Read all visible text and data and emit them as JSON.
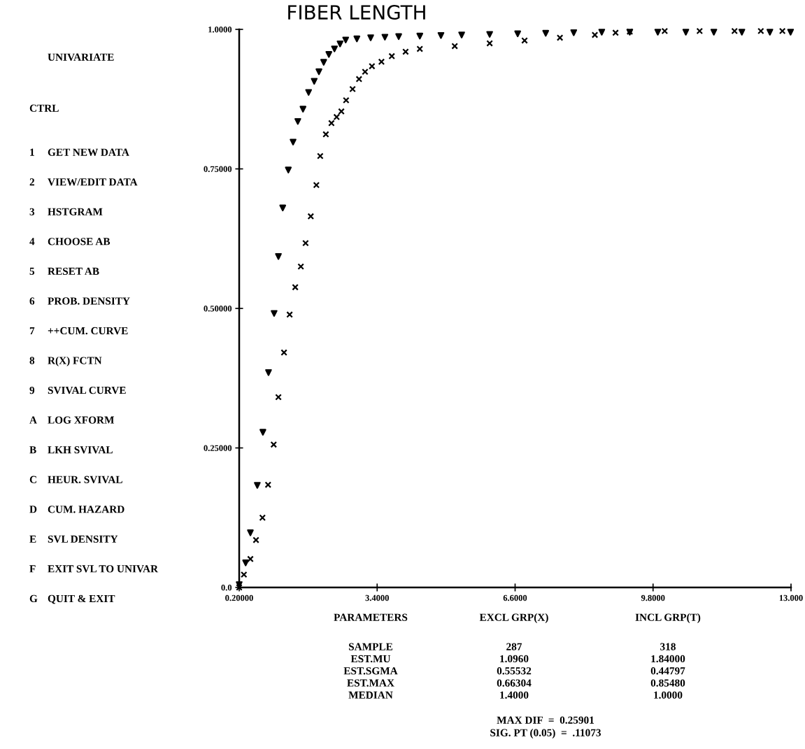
{
  "chart_data": {
    "type": "scatter",
    "title": "FIBER LENGTH",
    "xlim": [
      0.2,
      13.0
    ],
    "ylim": [
      0,
      1.0
    ],
    "xticks": [
      {
        "value": 0.2,
        "label": "0.20000"
      },
      {
        "value": 3.4,
        "label": "3.4000"
      },
      {
        "value": 6.6,
        "label": "6.6000"
      },
      {
        "value": 9.8,
        "label": "9.8000"
      },
      {
        "value": 13.0,
        "label": "13.000"
      }
    ],
    "yticks": [
      {
        "value": 0,
        "label": "0.0"
      },
      {
        "value": 0.25,
        "label": "0.25000"
      },
      {
        "value": 0.5,
        "label": "0.50000"
      },
      {
        "value": 0.75,
        "label": "0.75000"
      },
      {
        "value": 1.0,
        "label": "1.0000"
      }
    ],
    "grid": false,
    "legend": false,
    "series": [
      {
        "color": "#000000",
        "marker": "cross",
        "x": [
          0.2,
          0.31,
          0.46,
          0.59,
          0.74,
          0.87,
          1.0,
          1.11,
          1.24,
          1.37,
          1.5,
          1.63,
          1.74,
          1.86,
          1.99,
          2.08,
          2.21,
          2.34,
          2.46,
          2.57,
          2.68,
          2.83,
          2.98,
          3.12,
          3.28,
          3.5,
          3.74,
          4.06,
          4.39,
          5.2,
          6.01,
          6.82,
          7.64,
          8.45,
          8.93,
          9.26,
          10.07,
          10.88,
          11.69,
          12.3,
          12.8
        ],
        "values": [
          0.0,
          0.023,
          0.051,
          0.085,
          0.125,
          0.184,
          0.256,
          0.341,
          0.421,
          0.489,
          0.538,
          0.575,
          0.617,
          0.665,
          0.721,
          0.773,
          0.812,
          0.832,
          0.843,
          0.853,
          0.873,
          0.893,
          0.911,
          0.924,
          0.934,
          0.942,
          0.952,
          0.96,
          0.965,
          0.97,
          0.975,
          0.98,
          0.985,
          0.99,
          0.994,
          0.996,
          0.997,
          0.997,
          0.997,
          0.997,
          0.997
        ]
      },
      {
        "color": "#000000",
        "marker": "triangle",
        "x": [
          0.2,
          0.35,
          0.46,
          0.62,
          0.75,
          0.88,
          1.01,
          1.11,
          1.21,
          1.34,
          1.45,
          1.56,
          1.68,
          1.81,
          1.94,
          2.05,
          2.16,
          2.28,
          2.41,
          2.54,
          2.67,
          2.93,
          3.25,
          3.58,
          3.9,
          4.39,
          4.88,
          5.36,
          6.01,
          6.66,
          7.31,
          7.96,
          8.61,
          9.26,
          9.91,
          10.56,
          11.21,
          11.86,
          12.51,
          12.99
        ],
        "values": [
          0.005,
          0.044,
          0.098,
          0.183,
          0.278,
          0.385,
          0.491,
          0.593,
          0.68,
          0.748,
          0.798,
          0.835,
          0.857,
          0.887,
          0.907,
          0.924,
          0.941,
          0.955,
          0.965,
          0.974,
          0.981,
          0.983,
          0.985,
          0.986,
          0.987,
          0.988,
          0.989,
          0.99,
          0.991,
          0.992,
          0.993,
          0.994,
          0.995,
          0.995,
          0.995,
          0.995,
          0.995,
          0.995,
          0.995,
          0.995
        ]
      }
    ],
    "annotations": [
      "UNIVARIATE",
      "CTRL",
      "1 GET NEW DATA",
      "2 VIEW/EDIT DATA",
      "3 HSTGRAM",
      "4 CHOOSE AB",
      "5 RESET AB",
      "6 PROB. DENSITY",
      "7 ++CUM. CURVE",
      "8 R(X) FCTN",
      "9 SVIVAL CURVE",
      "A LOG XFORM",
      "B LKH SVIVAL",
      "C HEUR. SVIVAL",
      "D CUM. HAZARD",
      "E SVL DENSITY",
      "F EXIT SVL TO UNIVAR",
      "G QUIT & EXIT",
      "PARAMETERS",
      "EXCL GRP(X)",
      "INCL GRP(T)",
      "SAMPLE",
      "287",
      "318",
      "EST.MU",
      "1.0960",
      "1.84000",
      "EST.SGMA",
      "0.55532",
      "0.44797",
      "EST.MAX",
      "0.66304",
      "0.85480",
      "MEDIAN",
      "1.4000",
      "1.0000",
      "MAX DIF  =  0.25901",
      "SIG. PT (0.05)  =  .11073"
    ]
  }
}
